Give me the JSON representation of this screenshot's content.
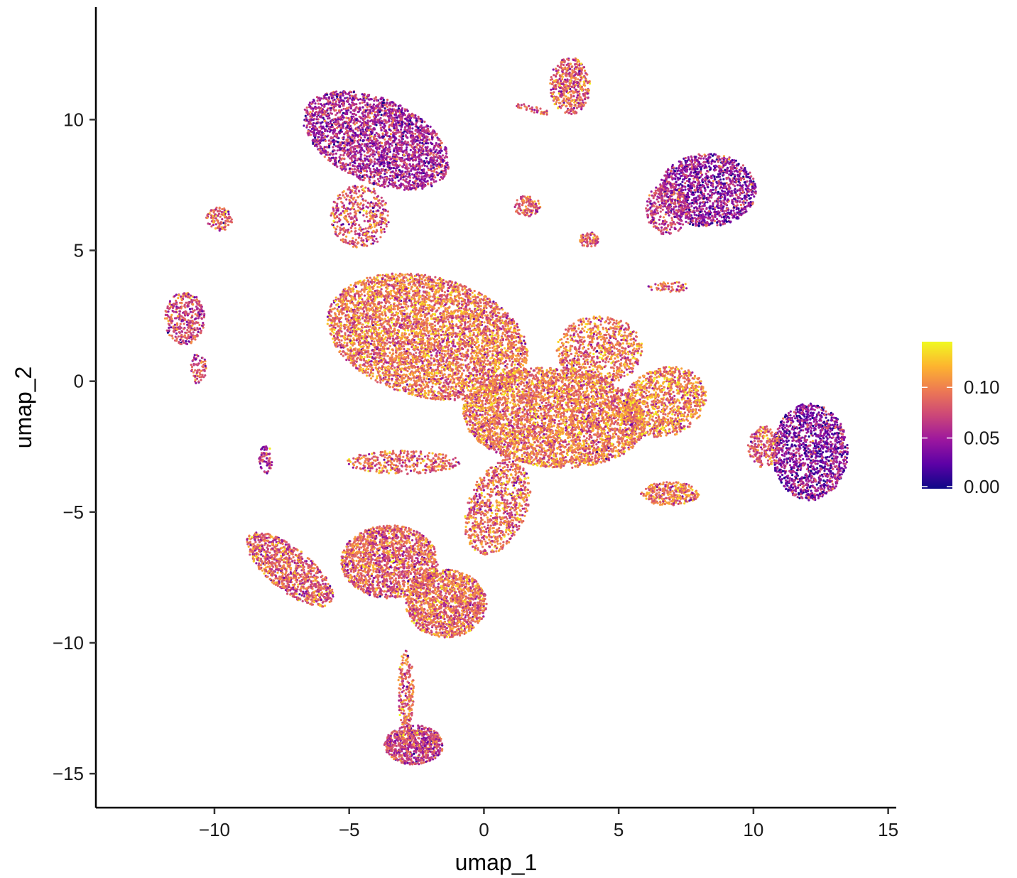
{
  "chart_data": {
    "type": "scatter",
    "title": "",
    "xlabel": "umap_1",
    "ylabel": "umap_2",
    "xlim": [
      -14.4,
      15.3
    ],
    "ylim": [
      -16.3,
      14.3
    ],
    "x_ticks": [
      -10,
      -5,
      0,
      5,
      10,
      15
    ],
    "x_tick_labels": [
      "−10",
      "−5",
      "0",
      "5",
      "10",
      "15"
    ],
    "y_ticks": [
      -15,
      -10,
      -5,
      0,
      5,
      10
    ],
    "y_tick_labels": [
      "−15",
      "−10",
      "−5",
      "0",
      "5",
      "10"
    ],
    "grid": false,
    "point_color_scale": {
      "palette": "plasma",
      "stops": [
        "#0d0887",
        "#5c01a6",
        "#9c179e",
        "#cc4778",
        "#ed7953",
        "#fdb42f",
        "#f0f921"
      ],
      "range": [
        0.0,
        0.145
      ],
      "legend_ticks": [
        0.0,
        0.05,
        0.1
      ],
      "legend_tick_labels": [
        "0.00",
        "0.05",
        "0.10"
      ],
      "legend_placement": "right"
    },
    "clusters": [
      {
        "cx": -4.0,
        "cy": 9.2,
        "rx": 2.9,
        "ry": 1.6,
        "rot": -25,
        "mean": 0.055,
        "n": 2600
      },
      {
        "cx": -4.6,
        "cy": 6.3,
        "rx": 1.1,
        "ry": 1.2,
        "rot": 0,
        "mean": 0.08,
        "n": 450
      },
      {
        "cx": -9.8,
        "cy": 6.2,
        "rx": 0.5,
        "ry": 0.45,
        "rot": 0,
        "mean": 0.085,
        "n": 120
      },
      {
        "cx": -11.1,
        "cy": 2.4,
        "rx": 0.75,
        "ry": 1.0,
        "rot": 0,
        "mean": 0.075,
        "n": 350
      },
      {
        "cx": -10.6,
        "cy": 0.5,
        "rx": 0.3,
        "ry": 0.6,
        "rot": 0,
        "mean": 0.07,
        "n": 70
      },
      {
        "cx": -2.1,
        "cy": 1.7,
        "rx": 3.8,
        "ry": 2.3,
        "rot": -15,
        "mean": 0.095,
        "n": 5200
      },
      {
        "cx": 2.6,
        "cy": -1.4,
        "rx": 3.4,
        "ry": 1.9,
        "rot": -5,
        "mean": 0.095,
        "n": 4200
      },
      {
        "cx": 6.7,
        "cy": -0.8,
        "rx": 1.6,
        "ry": 1.3,
        "rot": 25,
        "mean": 0.1,
        "n": 1100
      },
      {
        "cx": 4.3,
        "cy": 1.2,
        "rx": 1.6,
        "ry": 1.3,
        "rot": 0,
        "mean": 0.095,
        "n": 850
      },
      {
        "cx": 0.5,
        "cy": -4.8,
        "rx": 1.1,
        "ry": 1.9,
        "rot": -20,
        "mean": 0.09,
        "n": 900
      },
      {
        "cx": -3.0,
        "cy": -3.1,
        "rx": 2.1,
        "ry": 0.45,
        "rot": 0,
        "mean": 0.09,
        "n": 380
      },
      {
        "cx": -3.5,
        "cy": -6.9,
        "rx": 1.8,
        "ry": 1.4,
        "rot": 0,
        "mean": 0.085,
        "n": 1700
      },
      {
        "cx": -1.4,
        "cy": -8.5,
        "rx": 1.5,
        "ry": 1.3,
        "rot": 0,
        "mean": 0.09,
        "n": 1500
      },
      {
        "cx": -7.2,
        "cy": -7.2,
        "rx": 2.0,
        "ry": 0.8,
        "rot": -40,
        "mean": 0.085,
        "n": 1000
      },
      {
        "cx": -8.1,
        "cy": -3.0,
        "rx": 0.25,
        "ry": 0.55,
        "rot": 0,
        "mean": 0.06,
        "n": 70
      },
      {
        "cx": -2.9,
        "cy": -11.8,
        "rx": 0.3,
        "ry": 1.5,
        "rot": 0,
        "mean": 0.09,
        "n": 220
      },
      {
        "cx": -2.6,
        "cy": -13.9,
        "rx": 1.1,
        "ry": 0.75,
        "rot": 0,
        "mean": 0.07,
        "n": 750
      },
      {
        "cx": 3.2,
        "cy": 11.3,
        "rx": 0.75,
        "ry": 1.1,
        "rot": 0,
        "mean": 0.085,
        "n": 480
      },
      {
        "cx": 1.8,
        "cy": 10.4,
        "rx": 0.7,
        "ry": 0.12,
        "rot": -15,
        "mean": 0.085,
        "n": 45
      },
      {
        "cx": 8.3,
        "cy": 7.3,
        "rx": 1.8,
        "ry": 1.4,
        "rot": 0,
        "mean": 0.045,
        "n": 1400
      },
      {
        "cx": 6.8,
        "cy": 6.6,
        "rx": 0.8,
        "ry": 1.0,
        "rot": 0,
        "mean": 0.07,
        "n": 300
      },
      {
        "cx": 12.1,
        "cy": -2.7,
        "rx": 1.4,
        "ry": 1.85,
        "rot": 0,
        "mean": 0.04,
        "n": 1400
      },
      {
        "cx": 10.4,
        "cy": -2.5,
        "rx": 0.6,
        "ry": 0.8,
        "rot": 0,
        "mean": 0.08,
        "n": 220
      },
      {
        "cx": 1.6,
        "cy": 6.7,
        "rx": 0.5,
        "ry": 0.4,
        "rot": 0,
        "mean": 0.085,
        "n": 110
      },
      {
        "cx": 3.9,
        "cy": 5.4,
        "rx": 0.35,
        "ry": 0.3,
        "rot": 0,
        "mean": 0.09,
        "n": 90
      },
      {
        "cx": 6.9,
        "cy": 3.6,
        "rx": 0.8,
        "ry": 0.2,
        "rot": 0,
        "mean": 0.085,
        "n": 60
      },
      {
        "cx": 6.9,
        "cy": -4.3,
        "rx": 1.1,
        "ry": 0.45,
        "rot": 0,
        "mean": 0.095,
        "n": 320
      }
    ]
  }
}
